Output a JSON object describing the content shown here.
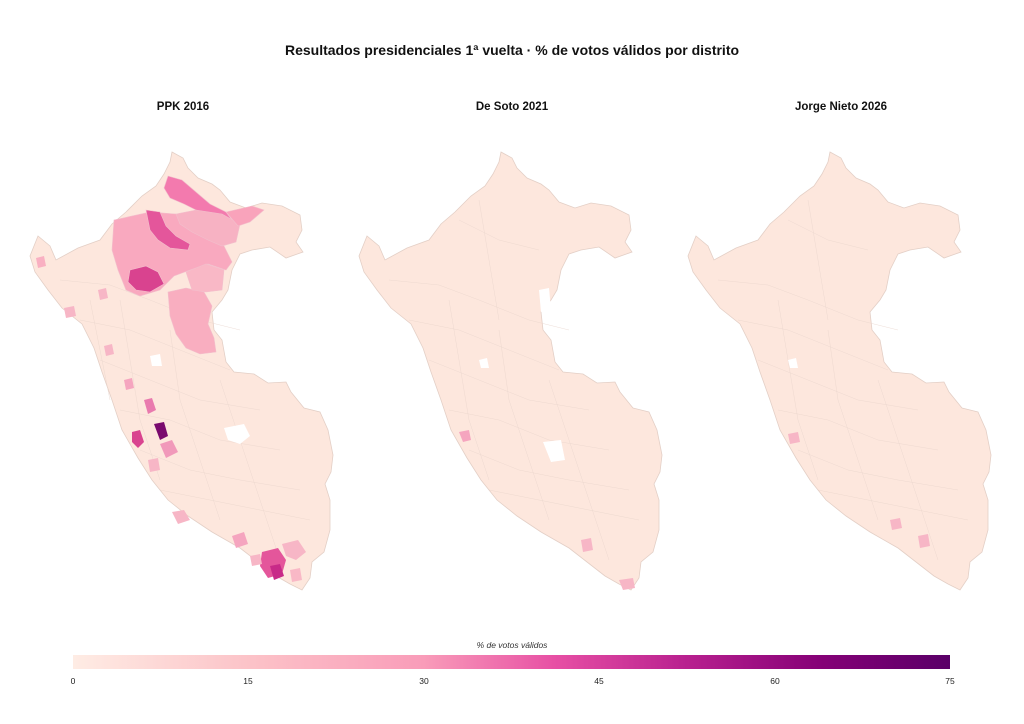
{
  "title": "Resultados presidenciales 1ª vuelta · % de votos válidos por distrito",
  "panels": [
    {
      "title": "PPK 2016"
    },
    {
      "title": "De Soto 2021"
    },
    {
      "title": "Jorge Nieto 2026"
    }
  ],
  "colorbar": {
    "title": "% de votos válidos",
    "min": 0,
    "max": 75,
    "ticks": [
      "0",
      "15",
      "30",
      "45",
      "60",
      "75"
    ],
    "colors": [
      "#feece4",
      "#fcc3c8",
      "#f99cb9",
      "#e74fa4",
      "#b8208f",
      "#5a0068"
    ]
  },
  "colors": {
    "base_fill": "#fde7dd",
    "border": "#e3cfc6"
  }
}
